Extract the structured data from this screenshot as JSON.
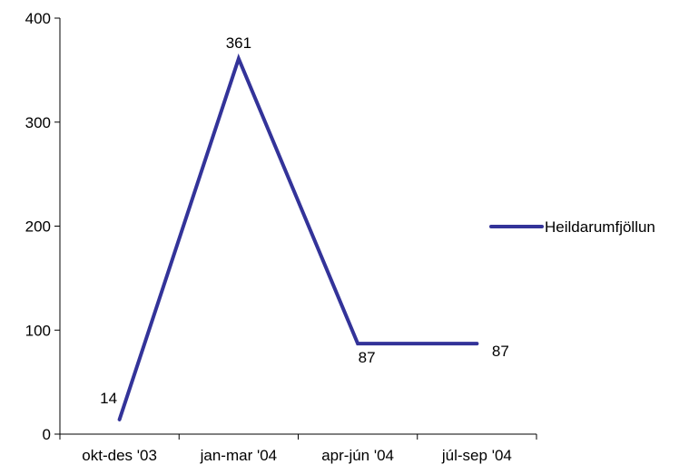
{
  "chart_data": {
    "type": "line",
    "categories": [
      "okt-des '03",
      "jan-mar '04",
      "apr-jún '04",
      "júl-sep '04"
    ],
    "series": [
      {
        "name": "Heildarumfjöllun",
        "values": [
          14,
          361,
          87,
          87
        ],
        "color": "#333399"
      }
    ],
    "ylim": [
      0,
      400
    ],
    "yticks": [
      0,
      100,
      200,
      300,
      400
    ],
    "data_labels": [
      "14",
      "361",
      "87",
      "87"
    ],
    "grid": false,
    "legend_position": "right"
  }
}
